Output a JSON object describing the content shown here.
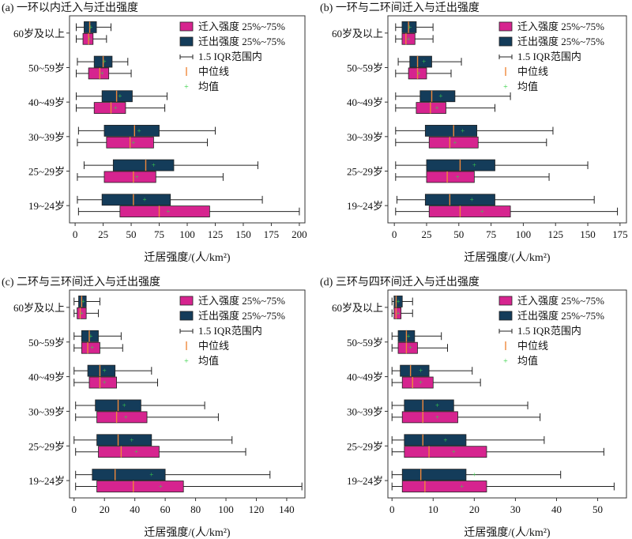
{
  "figure": {
    "xlabel": "迁居强度/(人/km²)",
    "colors": {
      "in_box": "#d6248f",
      "out_box": "#143c5a",
      "median": "#f0883a",
      "mean": "#39d24a",
      "whisker": "#222222",
      "frame": "#333333"
    }
  },
  "chart_data": [
    {
      "type": "box",
      "title": "(a) 一环以内迁入与迁出强度",
      "xlabel": "迁居强度/(人/km²)",
      "xlim": [
        -5,
        205
      ],
      "xticks": [
        0,
        25,
        50,
        75,
        100,
        125,
        150,
        175,
        200
      ],
      "categories": [
        "60岁及以上",
        "50~59岁",
        "40~49岁",
        "30~39岁",
        "25~29岁",
        "19~24岁"
      ],
      "legend": [
        "迁入强度 25%~75%",
        "迁出强度 25%~75%",
        "1.5 IQR范围内",
        "中位线",
        "均值"
      ],
      "series": [
        {
          "name": "迁入强度 25%~75%",
          "groups": [
            {
              "whislo": 1,
              "q1": 7,
              "med": 12,
              "q3": 16,
              "whishi": 28,
              "mean": 13
            },
            {
              "whislo": 1,
              "q1": 12,
              "med": 22,
              "q3": 30,
              "whishi": 50,
              "mean": 24
            },
            {
              "whislo": 1,
              "q1": 17,
              "med": 32,
              "q3": 45,
              "whishi": 80,
              "mean": 36
            },
            {
              "whislo": 2,
              "q1": 28,
              "med": 49,
              "q3": 70,
              "whishi": 118,
              "mean": 52
            },
            {
              "whislo": 2,
              "q1": 26,
              "med": 52,
              "q3": 72,
              "whishi": 132,
              "mean": 55
            },
            {
              "whislo": 3,
              "q1": 40,
              "med": 75,
              "q3": 120,
              "whishi": 200,
              "mean": 83
            }
          ]
        },
        {
          "name": "迁出强度 25%~75%",
          "groups": [
            {
              "whislo": 1,
              "q1": 8,
              "med": 13,
              "q3": 19,
              "whishi": 32,
              "mean": 14
            },
            {
              "whislo": 2,
              "q1": 17,
              "med": 25,
              "q3": 33,
              "whishi": 47,
              "mean": 26
            },
            {
              "whislo": 1,
              "q1": 24,
              "med": 37,
              "q3": 51,
              "whishi": 82,
              "mean": 40
            },
            {
              "whislo": 3,
              "q1": 26,
              "med": 53,
              "q3": 75,
              "whishi": 125,
              "mean": 57
            },
            {
              "whislo": 8,
              "q1": 34,
              "med": 63,
              "q3": 88,
              "whishi": 163,
              "mean": 70
            },
            {
              "whislo": 2,
              "q1": 24,
              "med": 52,
              "q3": 85,
              "whishi": 167,
              "mean": 62
            }
          ]
        }
      ]
    },
    {
      "type": "box",
      "title": "(b) 一环与二环间迁入与迁出强度",
      "xlabel": "迁居强度/(人/km²)",
      "xlim": [
        -5,
        180
      ],
      "xticks": [
        0,
        25,
        50,
        75,
        100,
        125,
        150,
        175
      ],
      "categories": [
        "60岁及以上",
        "50~59岁",
        "40~49岁",
        "30~39岁",
        "25~29岁",
        "19~24岁"
      ],
      "legend": [
        "迁入强度 25%~75%",
        "迁出强度 25%~75%",
        "1.5 IQR范围内",
        "中位线",
        "均值"
      ],
      "series": [
        {
          "name": "迁入强度 25%~75%",
          "groups": [
            {
              "whislo": 1,
              "q1": 6,
              "med": 9,
              "q3": 16,
              "whishi": 30,
              "mean": 11
            },
            {
              "whislo": 1,
              "q1": 11,
              "med": 18,
              "q3": 25,
              "whishi": 44,
              "mean": 19
            },
            {
              "whislo": 1,
              "q1": 17,
              "med": 28,
              "q3": 40,
              "whishi": 78,
              "mean": 33
            },
            {
              "whislo": 1,
              "q1": 27,
              "med": 43,
              "q3": 65,
              "whishi": 118,
              "mean": 47
            },
            {
              "whislo": 1,
              "q1": 25,
              "med": 41,
              "q3": 62,
              "whishi": 120,
              "mean": 49
            },
            {
              "whislo": 1,
              "q1": 27,
              "med": 51,
              "q3": 90,
              "whishi": 173,
              "mean": 68
            }
          ]
        },
        {
          "name": "迁出强度 25%~75%",
          "groups": [
            {
              "whislo": 1,
              "q1": 6,
              "med": 11,
              "q3": 17,
              "whishi": 30,
              "mean": 12
            },
            {
              "whislo": 3,
              "q1": 12,
              "med": 18,
              "q3": 29,
              "whishi": 52,
              "mean": 23
            },
            {
              "whislo": 1,
              "q1": 20,
              "med": 29,
              "q3": 47,
              "whishi": 90,
              "mean": 36
            },
            {
              "whislo": 1,
              "q1": 24,
              "med": 46,
              "q3": 64,
              "whishi": 123,
              "mean": 53
            },
            {
              "whislo": 1,
              "q1": 25,
              "med": 51,
              "q3": 78,
              "whishi": 150,
              "mean": 62
            },
            {
              "whislo": 2,
              "q1": 24,
              "med": 43,
              "q3": 78,
              "whishi": 155,
              "mean": 60
            }
          ]
        }
      ]
    },
    {
      "type": "box",
      "title": "(c) 二环与三环间迁入与迁出强度",
      "xlabel": "迁居强度/(人/km²)",
      "xlim": [
        -3,
        152
      ],
      "xticks": [
        0,
        20,
        40,
        60,
        80,
        100,
        120,
        140
      ],
      "categories": [
        "60岁及以上",
        "50~59岁",
        "40~49岁",
        "30~39岁",
        "25~29岁",
        "19~24岁"
      ],
      "legend": [
        "迁入强度 25%~75%",
        "迁出强度 25%~75%",
        "1.5 IQR范围内",
        "中位线",
        "均值"
      ],
      "series": [
        {
          "name": "迁入强度 25%~75%",
          "groups": [
            {
              "whislo": 0,
              "q1": 2,
              "med": 4,
              "q3": 8,
              "whishi": 16,
              "mean": 5
            },
            {
              "whislo": 0,
              "q1": 5,
              "med": 9,
              "q3": 17,
              "whishi": 32,
              "mean": 12
            },
            {
              "whislo": 0,
              "q1": 10,
              "med": 17,
              "q3": 28,
              "whishi": 55,
              "mean": 20
            },
            {
              "whislo": 1,
              "q1": 15,
              "med": 28,
              "q3": 48,
              "whishi": 95,
              "mean": 34
            },
            {
              "whislo": 1,
              "q1": 16,
              "med": 31,
              "q3": 56,
              "whishi": 113,
              "mean": 41
            },
            {
              "whislo": 1,
              "q1": 15,
              "med": 39,
              "q3": 72,
              "whishi": 150,
              "mean": 57
            }
          ]
        },
        {
          "name": "迁出强度 25%~75%",
          "groups": [
            {
              "whislo": 0,
              "q1": 3,
              "med": 5,
              "q3": 8,
              "whishi": 17,
              "mean": 6
            },
            {
              "whislo": 0,
              "q1": 5,
              "med": 10,
              "q3": 16,
              "whishi": 31,
              "mean": 11
            },
            {
              "whislo": 0,
              "q1": 9,
              "med": 17,
              "q3": 27,
              "whishi": 51,
              "mean": 20
            },
            {
              "whislo": 1,
              "q1": 14,
              "med": 29,
              "q3": 44,
              "whishi": 86,
              "mean": 33
            },
            {
              "whislo": 0,
              "q1": 15,
              "med": 29,
              "q3": 51,
              "whishi": 104,
              "mean": 38
            },
            {
              "whislo": 1,
              "q1": 12,
              "med": 27,
              "q3": 60,
              "whishi": 129,
              "mean": 51
            }
          ]
        }
      ]
    },
    {
      "type": "box",
      "title": "(d) 三环与四环间迁入与迁出强度",
      "xlabel": "迁居强度/(人/km²)",
      "xlim": [
        -1,
        57
      ],
      "xticks": [
        0,
        10,
        20,
        30,
        40,
        50
      ],
      "categories": [
        "60岁及以上",
        "50~59岁",
        "40~49岁",
        "30~39岁",
        "25~29岁",
        "19~24岁"
      ],
      "legend": [
        "迁入强度 25%~75%",
        "迁出强度 25%~75%",
        "1.5 IQR范围内",
        "中位线",
        "均值"
      ],
      "series": [
        {
          "name": "迁入强度 25%~75%",
          "groups": [
            {
              "whislo": 0,
              "q1": 0.5,
              "med": 1,
              "q3": 2.2,
              "whishi": 5,
              "mean": 1.5
            },
            {
              "whislo": 0,
              "q1": 1.5,
              "med": 3.5,
              "q3": 6.2,
              "whishi": 13.5,
              "mean": 4.5
            },
            {
              "whislo": 0,
              "q1": 2.5,
              "med": 5,
              "q3": 10,
              "whishi": 21.5,
              "mean": 7
            },
            {
              "whislo": 0,
              "q1": 2.5,
              "med": 7.5,
              "q3": 16,
              "whishi": 36,
              "mean": 11
            },
            {
              "whislo": 0,
              "q1": 3,
              "med": 9,
              "q3": 23,
              "whishi": 51.5,
              "mean": 15
            },
            {
              "whislo": 0,
              "q1": 2.5,
              "med": 8,
              "q3": 23,
              "whishi": 54,
              "mean": 17
            }
          ]
        },
        {
          "name": "迁出强度 25%~75%",
          "groups": [
            {
              "whislo": 0,
              "q1": 0.5,
              "med": 1,
              "q3": 2.5,
              "whishi": 5,
              "mean": 1.5
            },
            {
              "whislo": 0,
              "q1": 1.5,
              "med": 3.5,
              "q3": 5.5,
              "whishi": 12,
              "mean": 4
            },
            {
              "whislo": 0,
              "q1": 2,
              "med": 4.5,
              "q3": 9,
              "whishi": 19.5,
              "mean": 7
            },
            {
              "whislo": 0,
              "q1": 3,
              "med": 7.5,
              "q3": 15,
              "whishi": 33,
              "mean": 11
            },
            {
              "whislo": 0,
              "q1": 3,
              "med": 7.5,
              "q3": 18,
              "whishi": 37,
              "mean": 13
            },
            {
              "whislo": 0,
              "q1": 2.5,
              "med": 7,
              "q3": 18,
              "whishi": 41,
              "mean": 20
            }
          ]
        }
      ]
    }
  ]
}
